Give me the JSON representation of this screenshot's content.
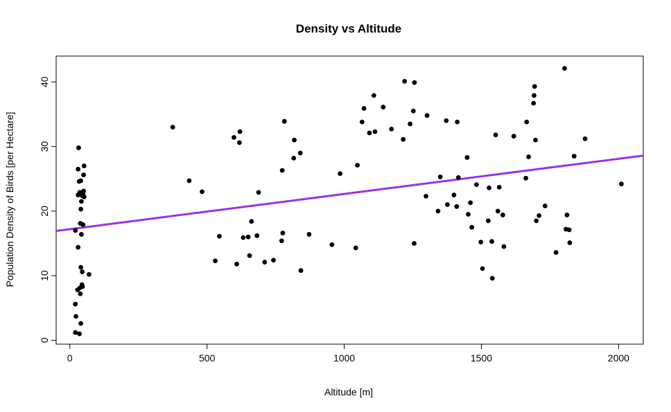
{
  "chart_data": {
    "type": "scatter",
    "title": "Density vs Altitude",
    "xlabel": "Altitude [m]",
    "ylabel": "Population Density of Birds [per Hectare]",
    "xlim": [
      -50,
      2090
    ],
    "ylim": [
      -0.6,
      44
    ],
    "xticks": [
      0,
      500,
      1000,
      1500,
      2000
    ],
    "yticks": [
      0,
      10,
      20,
      30,
      40
    ],
    "grid": false,
    "legend": "none",
    "point_color": "#000000",
    "trend_color": "#9B30E8",
    "trend_line": {
      "intercept": 17.2,
      "slope": 0.00545
    },
    "points": [
      [
        20,
        1.2
      ],
      [
        35,
        1.0
      ],
      [
        22,
        3.7
      ],
      [
        40,
        2.6
      ],
      [
        20,
        5.6
      ],
      [
        28,
        7.8
      ],
      [
        36,
        8.1
      ],
      [
        44,
        8.6
      ],
      [
        38,
        7.2
      ],
      [
        46,
        8.3
      ],
      [
        40,
        11.3
      ],
      [
        45,
        10.6
      ],
      [
        70,
        10.2
      ],
      [
        30,
        14.4
      ],
      [
        20,
        17.0
      ],
      [
        42,
        16.4
      ],
      [
        38,
        18.1
      ],
      [
        48,
        17.9
      ],
      [
        40,
        20.3
      ],
      [
        42,
        21.5
      ],
      [
        30,
        22.5
      ],
      [
        36,
        22.9
      ],
      [
        44,
        22.4
      ],
      [
        50,
        23.1
      ],
      [
        48,
        22.6
      ],
      [
        52,
        22.2
      ],
      [
        34,
        24.6
      ],
      [
        40,
        24.7
      ],
      [
        30,
        26.5
      ],
      [
        50,
        25.6
      ],
      [
        52,
        27.0
      ],
      [
        32,
        29.8
      ],
      [
        375,
        33.0
      ],
      [
        435,
        24.7
      ],
      [
        482,
        23.0
      ],
      [
        530,
        12.3
      ],
      [
        545,
        16.1
      ],
      [
        598,
        31.4
      ],
      [
        608,
        11.8
      ],
      [
        618,
        30.6
      ],
      [
        620,
        32.3
      ],
      [
        632,
        15.9
      ],
      [
        650,
        16.0
      ],
      [
        655,
        13.1
      ],
      [
        662,
        18.4
      ],
      [
        682,
        16.2
      ],
      [
        688,
        22.9
      ],
      [
        710,
        12.1
      ],
      [
        742,
        12.4
      ],
      [
        772,
        15.4
      ],
      [
        774,
        26.3
      ],
      [
        776,
        16.6
      ],
      [
        782,
        33.9
      ],
      [
        816,
        28.2
      ],
      [
        818,
        31.0
      ],
      [
        840,
        29.0
      ],
      [
        842,
        10.8
      ],
      [
        872,
        16.4
      ],
      [
        955,
        14.8
      ],
      [
        985,
        25.8
      ],
      [
        1042,
        14.3
      ],
      [
        1048,
        27.1
      ],
      [
        1065,
        33.8
      ],
      [
        1072,
        35.9
      ],
      [
        1092,
        32.1
      ],
      [
        1108,
        37.9
      ],
      [
        1112,
        32.3
      ],
      [
        1142,
        36.1
      ],
      [
        1172,
        32.7
      ],
      [
        1215,
        31.1
      ],
      [
        1220,
        40.1
      ],
      [
        1240,
        33.5
      ],
      [
        1252,
        35.5
      ],
      [
        1255,
        15.0
      ],
      [
        1256,
        39.9
      ],
      [
        1298,
        22.3
      ],
      [
        1302,
        34.8
      ],
      [
        1342,
        20.0
      ],
      [
        1350,
        25.3
      ],
      [
        1372,
        34.0
      ],
      [
        1376,
        21.0
      ],
      [
        1400,
        22.5
      ],
      [
        1410,
        20.7
      ],
      [
        1412,
        33.8
      ],
      [
        1416,
        25.2
      ],
      [
        1448,
        28.3
      ],
      [
        1452,
        19.5
      ],
      [
        1460,
        21.3
      ],
      [
        1465,
        17.5
      ],
      [
        1482,
        24.1
      ],
      [
        1498,
        15.2
      ],
      [
        1504,
        11.1
      ],
      [
        1525,
        18.5
      ],
      [
        1528,
        23.6
      ],
      [
        1538,
        15.3
      ],
      [
        1540,
        9.6
      ],
      [
        1552,
        31.8
      ],
      [
        1560,
        20.0
      ],
      [
        1565,
        23.7
      ],
      [
        1578,
        19.4
      ],
      [
        1582,
        14.5
      ],
      [
        1618,
        31.6
      ],
      [
        1662,
        25.1
      ],
      [
        1665,
        33.8
      ],
      [
        1672,
        28.4
      ],
      [
        1690,
        36.7
      ],
      [
        1692,
        37.9
      ],
      [
        1694,
        39.3
      ],
      [
        1697,
        31.0
      ],
      [
        1700,
        18.5
      ],
      [
        1710,
        19.3
      ],
      [
        1732,
        20.8
      ],
      [
        1772,
        13.6
      ],
      [
        1803,
        42.1
      ],
      [
        1808,
        17.2
      ],
      [
        1812,
        19.4
      ],
      [
        1820,
        17.1
      ],
      [
        1822,
        15.1
      ],
      [
        1838,
        28.5
      ],
      [
        1878,
        31.2
      ],
      [
        2010,
        24.2
      ]
    ]
  }
}
